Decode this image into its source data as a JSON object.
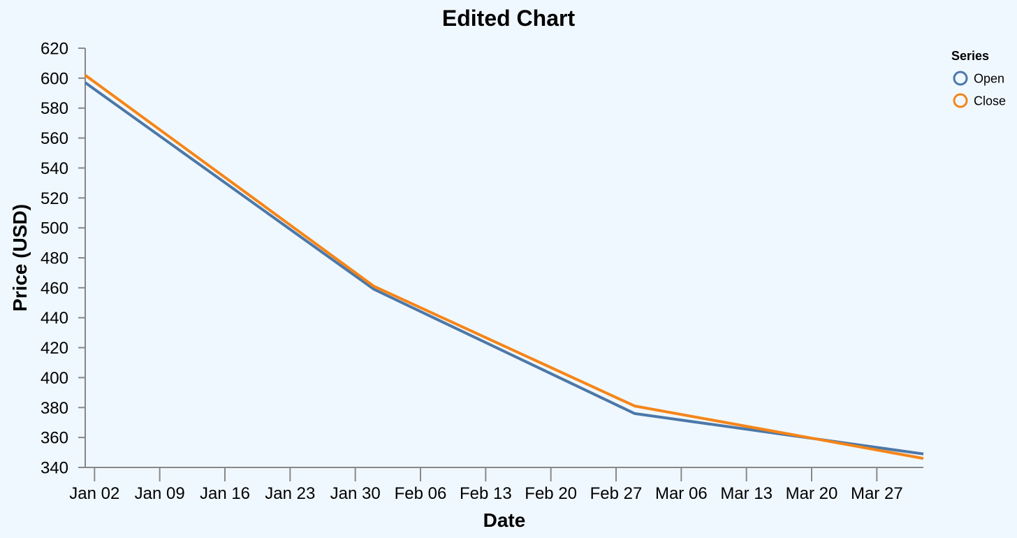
{
  "chart_data": {
    "type": "line",
    "title": "Edited Chart",
    "xlabel": "Date",
    "ylabel": "Price (USD)",
    "x_ticks": [
      "Jan 02",
      "Jan 09",
      "Jan 16",
      "Jan 23",
      "Jan 30",
      "Feb 06",
      "Feb 13",
      "Feb 20",
      "Feb 27",
      "Mar 06",
      "Mar 13",
      "Mar 20",
      "Mar 27"
    ],
    "y_ticks": [
      340,
      360,
      380,
      400,
      420,
      440,
      460,
      480,
      500,
      520,
      540,
      560,
      580,
      600,
      620
    ],
    "ylim": [
      340,
      620
    ],
    "xlim": [
      "2023-01-01",
      "2023-04-01"
    ],
    "grid": false,
    "legend": {
      "title": "Series",
      "placement": "top-right"
    },
    "series": [
      {
        "name": "Open",
        "color": "#4c78a8",
        "points": [
          {
            "x": "2023-01-01",
            "y": 597
          },
          {
            "x": "2023-02-01",
            "y": 459
          },
          {
            "x": "2023-03-01",
            "y": 376
          },
          {
            "x": "2023-04-01",
            "y": 349
          }
        ]
      },
      {
        "name": "Close",
        "color": "#f58518",
        "points": [
          {
            "x": "2023-01-01",
            "y": 602
          },
          {
            "x": "2023-02-01",
            "y": 461
          },
          {
            "x": "2023-03-01",
            "y": 381
          },
          {
            "x": "2023-04-01",
            "y": 346
          }
        ]
      }
    ]
  }
}
